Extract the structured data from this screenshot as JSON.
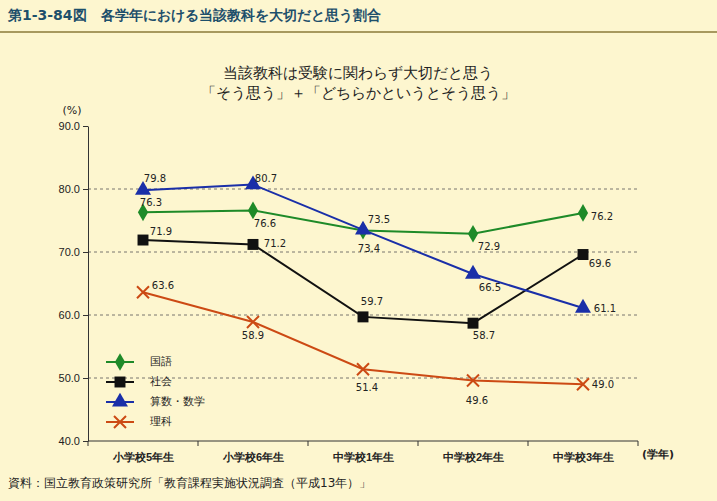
{
  "chart_data": {
    "type": "line",
    "title": "第1-3-84図　各学年における当該教科を大切だと思う割合",
    "subtitle": [
      "当該教科は受験に関わらず大切だと思う",
      "「そう思う」＋「どちらかというとそう思う」"
    ],
    "y_label": "(%)",
    "x_label": "(学年)",
    "annotations": [
      "資料：国立教育政策研究所「教育課程実施状況調査（平成13年）」"
    ],
    "categories": [
      "小学校5年生",
      "小学校6年生",
      "中学校1年生",
      "中学校2年生",
      "中学校3年生"
    ],
    "series": [
      {
        "name": "国語",
        "color": "#1e8a28",
        "marker": "diamond",
        "values": [
          76.3,
          76.6,
          73.4,
          72.9,
          76.2
        ]
      },
      {
        "name": "社会",
        "color": "#111111",
        "marker": "square",
        "values": [
          71.9,
          71.2,
          59.7,
          58.7,
          69.6
        ]
      },
      {
        "name": "算数・数学",
        "color": "#1a2fa8",
        "marker": "triangle",
        "values": [
          79.8,
          80.7,
          73.5,
          66.5,
          61.1
        ]
      },
      {
        "name": "理科",
        "color": "#cc4a14",
        "marker": "x",
        "values": [
          63.6,
          58.9,
          51.4,
          49.6,
          49.0
        ],
        "value_labels": [
          "63.6",
          "58.9",
          "51.4",
          "49.6",
          "49.0"
        ]
      }
    ],
    "ylim": [
      40,
      90
    ],
    "yticks": [
      {
        "value": 40,
        "label": "40.0"
      },
      {
        "value": 50,
        "label": "50.0"
      },
      {
        "value": 60,
        "label": "60.0"
      },
      {
        "value": 70,
        "label": "70.0"
      },
      {
        "value": 80,
        "label": "80.0"
      },
      {
        "value": 90,
        "label": "90.0"
      }
    ],
    "grid": true,
    "legend": "lower left",
    "data_labels": true
  }
}
